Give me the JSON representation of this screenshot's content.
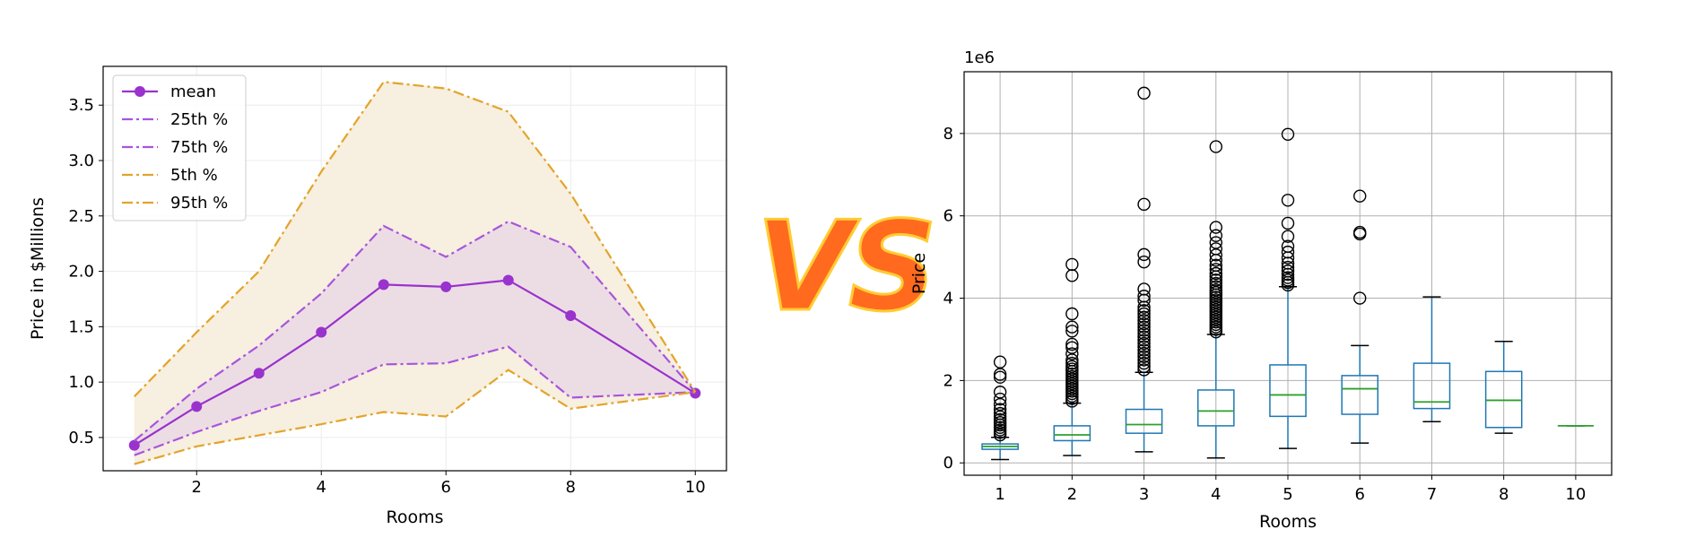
{
  "vs_text": "VS",
  "colors": {
    "mean": "#9a32cd",
    "quartile": "#a855dc",
    "pct": "#e3a42b",
    "outer_fill": "#f7efdf",
    "inner_fill": "#ecdde4",
    "box": "#1f77b4",
    "median": "#2ca02c",
    "grid": "#b0b0b0",
    "vs_fill": "#ff6a1f",
    "vs_stroke": "#ffcc33"
  },
  "chart_data": [
    {
      "type": "line",
      "title": "",
      "xlabel": "Rooms",
      "ylabel": "Price in $Millions",
      "xlim": [
        0.5,
        10.5
      ],
      "ylim": [
        0.2,
        3.85
      ],
      "xticks": [
        2,
        4,
        6,
        8,
        10
      ],
      "yticks": [
        0.5,
        1.0,
        1.5,
        2.0,
        2.5,
        3.0,
        3.5
      ],
      "ytick_labels": [
        "0.5",
        "1.0",
        "1.5",
        "2.0",
        "2.5",
        "3.0",
        "3.5"
      ],
      "x": [
        1,
        2,
        3,
        4,
        5,
        6,
        7,
        8,
        10
      ],
      "series": [
        {
          "name": "mean",
          "style": "mean",
          "values": [
            0.43,
            0.78,
            1.08,
            1.45,
            1.88,
            1.86,
            1.92,
            1.6,
            0.9
          ]
        },
        {
          "name": "25th %",
          "style": "quartile",
          "values": [
            0.34,
            0.55,
            0.74,
            0.91,
            1.16,
            1.17,
            1.32,
            0.86,
            0.91
          ]
        },
        {
          "name": "75th %",
          "style": "quartile",
          "values": [
            0.47,
            0.94,
            1.33,
            1.8,
            2.41,
            2.13,
            2.45,
            2.22,
            0.91
          ]
        },
        {
          "name": "5th %",
          "style": "pct",
          "values": [
            0.26,
            0.42,
            0.52,
            0.62,
            0.73,
            0.69,
            1.11,
            0.76,
            0.91
          ]
        },
        {
          "name": "95th %",
          "style": "pct",
          "values": [
            0.87,
            1.45,
            2.0,
            2.9,
            3.71,
            3.65,
            3.44,
            2.7,
            0.91
          ]
        }
      ],
      "legend": "top-left",
      "grid": true
    },
    {
      "type": "box",
      "title": "",
      "xlabel": "Rooms",
      "ylabel": "Price",
      "offset_label": "1e6",
      "ylim": [
        -0.3,
        9.5
      ],
      "yticks": [
        0,
        2,
        4,
        6,
        8
      ],
      "categories": [
        "1",
        "2",
        "3",
        "4",
        "5",
        "6",
        "7",
        "8",
        "10"
      ],
      "boxes": [
        {
          "whislo": 0.08,
          "q1": 0.33,
          "med": 0.4,
          "q3": 0.46,
          "whishi": 0.62,
          "fliers": [
            0.68,
            0.74,
            0.8,
            0.86,
            0.92,
            0.98,
            1.05,
            1.12,
            1.2,
            1.3,
            1.42,
            1.55,
            1.72,
            2.08,
            2.15,
            2.45
          ]
        },
        {
          "whislo": 0.18,
          "q1": 0.54,
          "med": 0.68,
          "q3": 0.9,
          "whishi": 1.45,
          "fliers": [
            1.5,
            1.56,
            1.62,
            1.68,
            1.74,
            1.8,
            1.86,
            1.92,
            1.98,
            2.04,
            2.1,
            2.16,
            2.22,
            2.28,
            2.34,
            2.42,
            2.5,
            2.65,
            2.8,
            2.88,
            3.2,
            3.3,
            3.62,
            4.55,
            4.82
          ]
        },
        {
          "whislo": 0.27,
          "q1": 0.72,
          "med": 0.93,
          "q3": 1.3,
          "whishi": 2.2,
          "fliers": [
            2.26,
            2.34,
            2.42,
            2.5,
            2.58,
            2.66,
            2.74,
            2.82,
            2.9,
            2.98,
            3.06,
            3.14,
            3.22,
            3.3,
            3.38,
            3.46,
            3.54,
            3.62,
            3.7,
            3.78,
            3.95,
            4.05,
            4.22,
            4.88,
            5.06,
            6.28,
            8.98
          ]
        },
        {
          "whislo": 0.12,
          "q1": 0.9,
          "med": 1.26,
          "q3": 1.77,
          "whishi": 3.12,
          "fliers": [
            3.18,
            3.24,
            3.3,
            3.36,
            3.42,
            3.48,
            3.54,
            3.6,
            3.66,
            3.72,
            3.78,
            3.84,
            3.9,
            3.96,
            4.02,
            4.08,
            4.14,
            4.2,
            4.28,
            4.36,
            4.44,
            4.52,
            4.6,
            4.7,
            4.8,
            4.92,
            5.05,
            5.2,
            5.35,
            5.52,
            5.72,
            7.68
          ]
        },
        {
          "whislo": 0.35,
          "q1": 1.13,
          "med": 1.65,
          "q3": 2.38,
          "whishi": 4.28,
          "fliers": [
            4.32,
            4.38,
            4.44,
            4.5,
            4.58,
            4.66,
            4.75,
            4.85,
            4.98,
            5.12,
            5.26,
            5.5,
            5.82,
            6.38,
            7.98
          ]
        },
        {
          "whislo": 0.48,
          "q1": 1.18,
          "med": 1.8,
          "q3": 2.12,
          "whishi": 2.85,
          "fliers": [
            4.0,
            5.56,
            5.6,
            6.48
          ]
        },
        {
          "whislo": 1.0,
          "q1": 1.32,
          "med": 1.48,
          "q3": 2.42,
          "whishi": 4.03,
          "fliers": []
        },
        {
          "whislo": 0.72,
          "q1": 0.86,
          "med": 1.52,
          "q3": 2.22,
          "whishi": 2.95,
          "fliers": []
        },
        {
          "whislo": 0.9,
          "q1": 0.9,
          "med": 0.9,
          "q3": 0.9,
          "whishi": 0.9,
          "fliers": []
        }
      ],
      "grid": true
    }
  ]
}
